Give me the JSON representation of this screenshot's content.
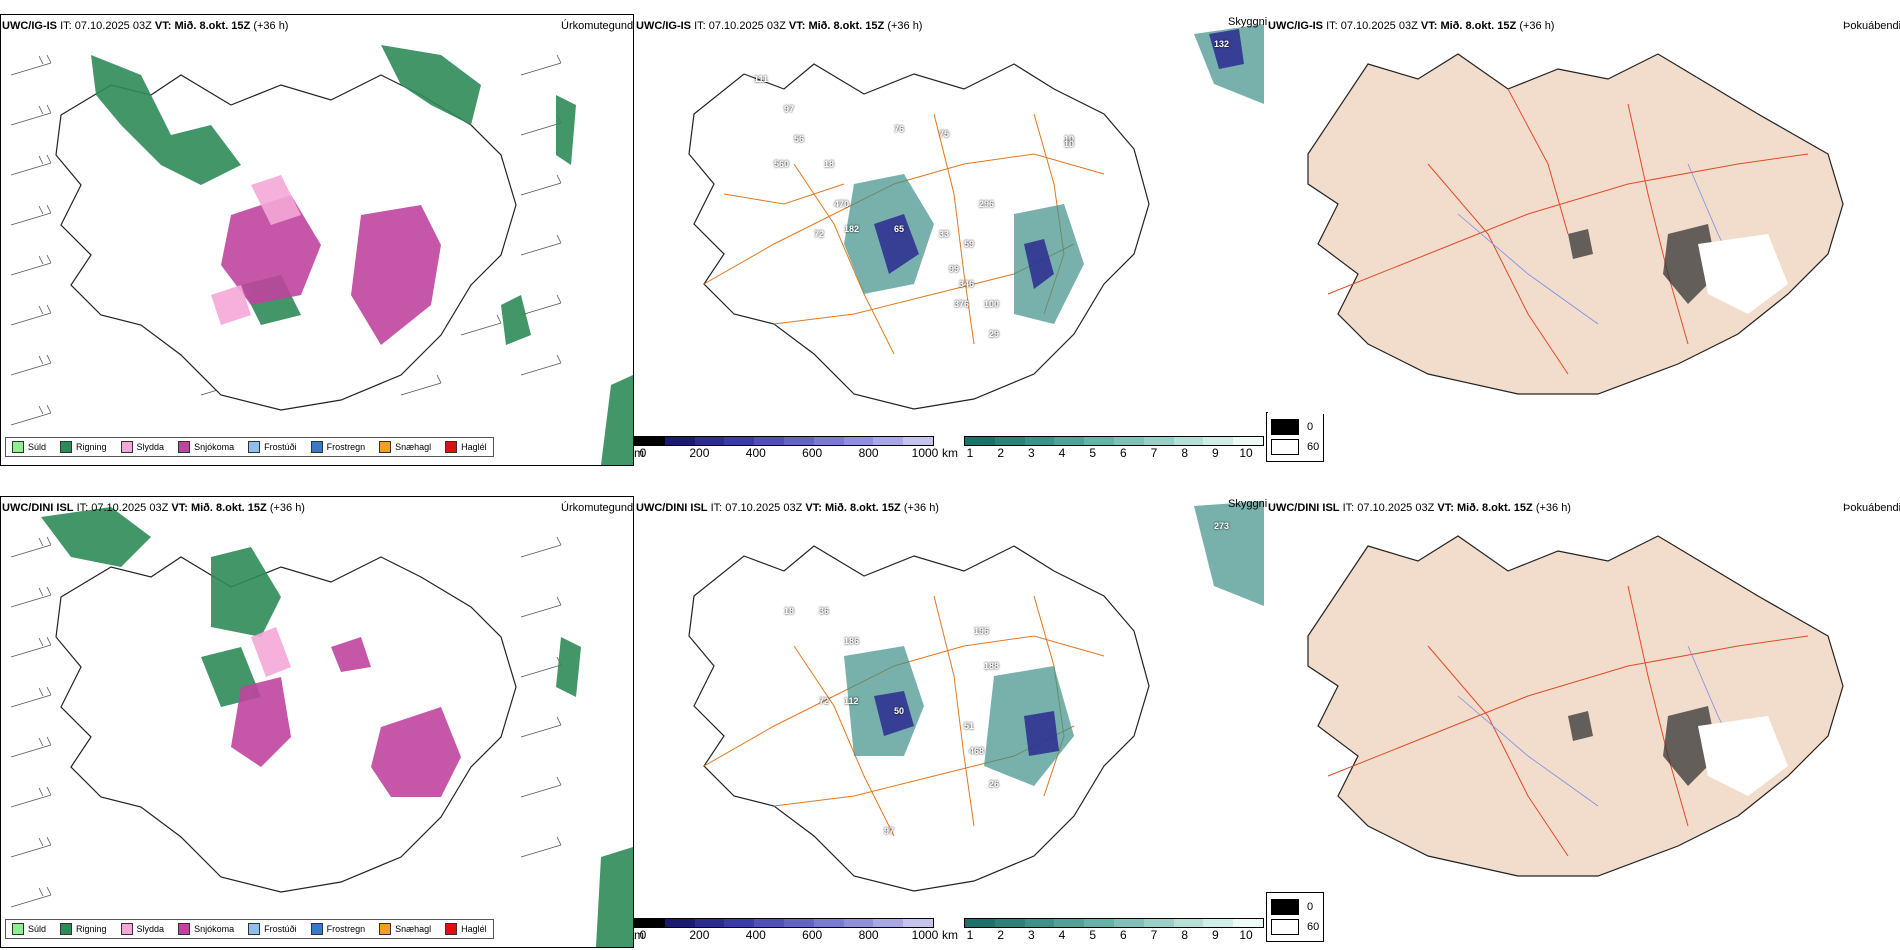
{
  "rows": [
    {
      "model": "UWC/IG-IS",
      "it_label": "IT:",
      "it_value": "07.10.2025 03Z",
      "vt_label": "VT:",
      "vt_value": "Mið. 8.okt. 15Z",
      "lead": "(+36 h)",
      "precip_labels": [
        "132",
        "111",
        "97",
        "56",
        "560",
        "18",
        "470",
        "182",
        "72",
        "65",
        "76",
        "75",
        "10",
        "296",
        "59",
        "33",
        "99",
        "346",
        "376",
        "100",
        "29",
        "10"
      ],
      "cloud_labels": []
    },
    {
      "model": "UWC/DINI ISL",
      "it_label": "IT:",
      "it_value": "07.10.2025 03Z",
      "vt_label": "VT:",
      "vt_value": "Mið. 8.okt. 15Z",
      "lead": "(+36 h)",
      "precip_labels": [
        "273",
        "18",
        "36",
        "186",
        "196",
        "72",
        "112",
        "50",
        "188",
        "51",
        "468",
        "26",
        "97"
      ],
      "cloud_labels": []
    }
  ],
  "panel_titles": {
    "precip_type": "Úrkomutegund",
    "cloud_base": "Skyggni",
    "fog": "Þokuábendi"
  },
  "precip_legend": [
    {
      "label": "Súld",
      "color": "#90ee90"
    },
    {
      "label": "Rigning",
      "color": "#2e8b57"
    },
    {
      "label": "Slydda",
      "color": "#f4a7d8"
    },
    {
      "label": "Snjókoma",
      "color": "#c0449e"
    },
    {
      "label": "Frostúði",
      "color": "#8ec0ee"
    },
    {
      "label": "Frostregn",
      "color": "#3a78c8"
    },
    {
      "label": "Snæhagl",
      "color": "#f0a020"
    },
    {
      "label": "Haglél",
      "color": "#e01010"
    }
  ],
  "cloud_bar": {
    "unit": "m",
    "ticks": [
      "0",
      "200",
      "400",
      "600",
      "800",
      "1000"
    ],
    "colors": [
      "#000000",
      "#1a1a70",
      "#2c2c90",
      "#3a3aa8",
      "#5050b8",
      "#6464c4",
      "#7a7ad0",
      "#9090da",
      "#a8a8e4",
      "#c4c4ee"
    ]
  },
  "vis_bar": {
    "unit": "km",
    "ticks": [
      "1",
      "2",
      "3",
      "4",
      "5",
      "6",
      "7",
      "8",
      "9",
      "10"
    ],
    "colors": [
      "#1e7068",
      "#2e8078",
      "#3f9088",
      "#52a098",
      "#68b0a8",
      "#80c0b8",
      "#98d0c8",
      "#b4e0d8",
      "#d0eee8",
      "#eefaf8"
    ]
  },
  "fog_key": [
    {
      "label": "0",
      "color": "#000000"
    },
    {
      "label": "60",
      "color": "#ffffff"
    }
  ]
}
